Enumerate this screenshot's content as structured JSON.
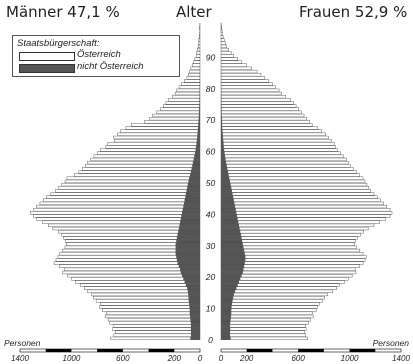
{
  "header": {
    "left": "Männer 47,1 %",
    "center": "Alter",
    "right": "Frauen 52,9 %"
  },
  "legend": {
    "title": "Staatsbürgerschaft:",
    "items": [
      {
        "label": "Österreich",
        "color": "#ffffff"
      },
      {
        "label": "nicht Österreich",
        "color": "#555555"
      }
    ]
  },
  "x_axis_label": "Personen",
  "chart_data": {
    "type": "bar",
    "orientation": "horizontal",
    "subtype": "population-pyramid",
    "age_ticks": [
      0,
      10,
      20,
      30,
      40,
      50,
      60,
      70,
      80,
      90
    ],
    "ylim": [
      0,
      100
    ],
    "xlim": [
      0,
      1400
    ],
    "male_x_ticks": [
      "1400",
      "1000",
      "600",
      "200",
      "0"
    ],
    "female_x_ticks": [
      "0",
      "200",
      "600",
      "1000",
      "1400"
    ],
    "x_ticks_numeric": [
      0,
      200,
      600,
      1000,
      1400
    ],
    "grid": false,
    "series": [
      {
        "name": "Männer",
        "side": "left",
        "oesterreich": [
          620,
          600,
          590,
          610,
          600,
          630,
          640,
          660,
          650,
          680,
          700,
          690,
          720,
          740,
          750,
          780,
          800,
          820,
          850,
          870,
          890,
          920,
          900,
          930,
          960,
          940,
          920,
          900,
          880,
          860,
          850,
          860,
          880,
          900,
          930,
          980,
          1020,
          1070,
          1120,
          1150,
          1180,
          1160,
          1140,
          1120,
          1100,
          1080,
          1050,
          1020,
          1000,
          980,
          960,
          950,
          900,
          870,
          850,
          830,
          820,
          800,
          780,
          760,
          740,
          700,
          690,
          640,
          650,
          620,
          600,
          560,
          520,
          420,
          380,
          360,
          330,
          300,
          280,
          260,
          240,
          210,
          190,
          180,
          160,
          140,
          120,
          100,
          90,
          80,
          70,
          60,
          50,
          40,
          30,
          25,
          20,
          15,
          12,
          9,
          6,
          4,
          3,
          2,
          1
        ],
        "nicht_oesterreich": [
          75,
          70,
          70,
          72,
          70,
          72,
          75,
          78,
          80,
          80,
          82,
          85,
          88,
          90,
          92,
          95,
          100,
          110,
          120,
          130,
          140,
          150,
          155,
          165,
          175,
          180,
          185,
          190,
          190,
          190,
          190,
          185,
          180,
          175,
          170,
          165,
          160,
          155,
          150,
          145,
          140,
          135,
          130,
          125,
          120,
          115,
          110,
          105,
          100,
          95,
          90,
          85,
          78,
          72,
          66,
          60,
          55,
          50,
          45,
          40,
          35,
          32,
          28,
          25,
          22,
          20,
          18,
          16,
          14,
          12,
          10,
          9,
          8,
          7,
          6,
          5,
          5,
          4,
          4,
          3,
          3,
          2,
          2,
          2,
          1,
          1,
          1,
          1,
          0,
          0,
          0,
          0,
          0,
          0,
          0,
          0,
          0,
          0,
          0,
          0,
          0
        ]
      },
      {
        "name": "Frauen",
        "side": "right",
        "oesterreich": [
          600,
          590,
          580,
          590,
          590,
          610,
          620,
          640,
          630,
          660,
          670,
          680,
          700,
          710,
          730,
          760,
          780,
          790,
          820,
          840,
          860,
          880,
          870,
          900,
          920,
          930,
          940,
          920,
          900,
          880,
          870,
          880,
          900,
          930,
          960,
          1000,
          1050,
          1100,
          1150,
          1190,
          1210,
          1200,
          1180,
          1160,
          1140,
          1120,
          1100,
          1080,
          1070,
          1060,
          1050,
          1040,
          1020,
          1000,
          980,
          960,
          950,
          940,
          920,
          900,
          880,
          870,
          860,
          840,
          820,
          800,
          770,
          740,
          700,
          680,
          660,
          640,
          620,
          600,
          580,
          560,
          540,
          500,
          470,
          450,
          420,
          400,
          370,
          340,
          310,
          280,
          240,
          200,
          160,
          130,
          100,
          80,
          60,
          45,
          35,
          25,
          18,
          12,
          8,
          5,
          3
        ],
        "nicht_oesterreich": [
          75,
          70,
          70,
          72,
          70,
          72,
          75,
          78,
          80,
          80,
          82,
          85,
          90,
          95,
          100,
          110,
          120,
          130,
          140,
          150,
          160,
          170,
          175,
          180,
          185,
          190,
          190,
          185,
          180,
          175,
          170,
          165,
          160,
          155,
          150,
          145,
          140,
          135,
          130,
          125,
          120,
          115,
          110,
          105,
          100,
          95,
          90,
          85,
          80,
          75,
          70,
          65,
          60,
          55,
          50,
          45,
          40,
          36,
          32,
          28,
          25,
          22,
          20,
          18,
          16,
          14,
          12,
          10,
          9,
          8,
          7,
          6,
          5,
          5,
          4,
          4,
          3,
          3,
          2,
          2,
          2,
          1,
          1,
          1,
          1,
          1,
          0,
          0,
          0,
          0,
          0,
          0,
          0,
          0,
          0,
          0,
          0,
          0,
          0,
          0
        ]
      }
    ]
  }
}
